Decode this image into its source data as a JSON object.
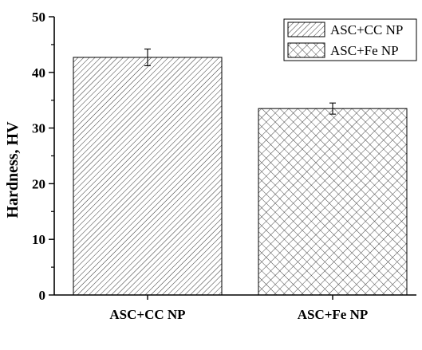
{
  "chart_data": {
    "type": "bar",
    "categories": [
      "ASC+CC NP",
      "ASC+Fe NP"
    ],
    "series": [
      {
        "values": [
          42.7,
          33.5
        ],
        "errors": [
          1.5,
          1.0
        ]
      }
    ],
    "ylabel": "Hardness, HV",
    "xlabel": "",
    "ylim": [
      0,
      50
    ],
    "yticks": [
      0,
      10,
      20,
      30,
      40,
      50
    ],
    "legend": {
      "placement": "top-right",
      "entries": [
        {
          "label": "ASC+CC NP",
          "pattern": "diagonal-hatch"
        },
        {
          "label": "ASC+Fe NP",
          "pattern": "crosshatch"
        }
      ]
    },
    "bar_patterns": [
      "diagonal-hatch",
      "crosshatch"
    ],
    "colors": {
      "hatch": "#333333",
      "bar_outline": "#000000",
      "axis": "#000000"
    }
  }
}
